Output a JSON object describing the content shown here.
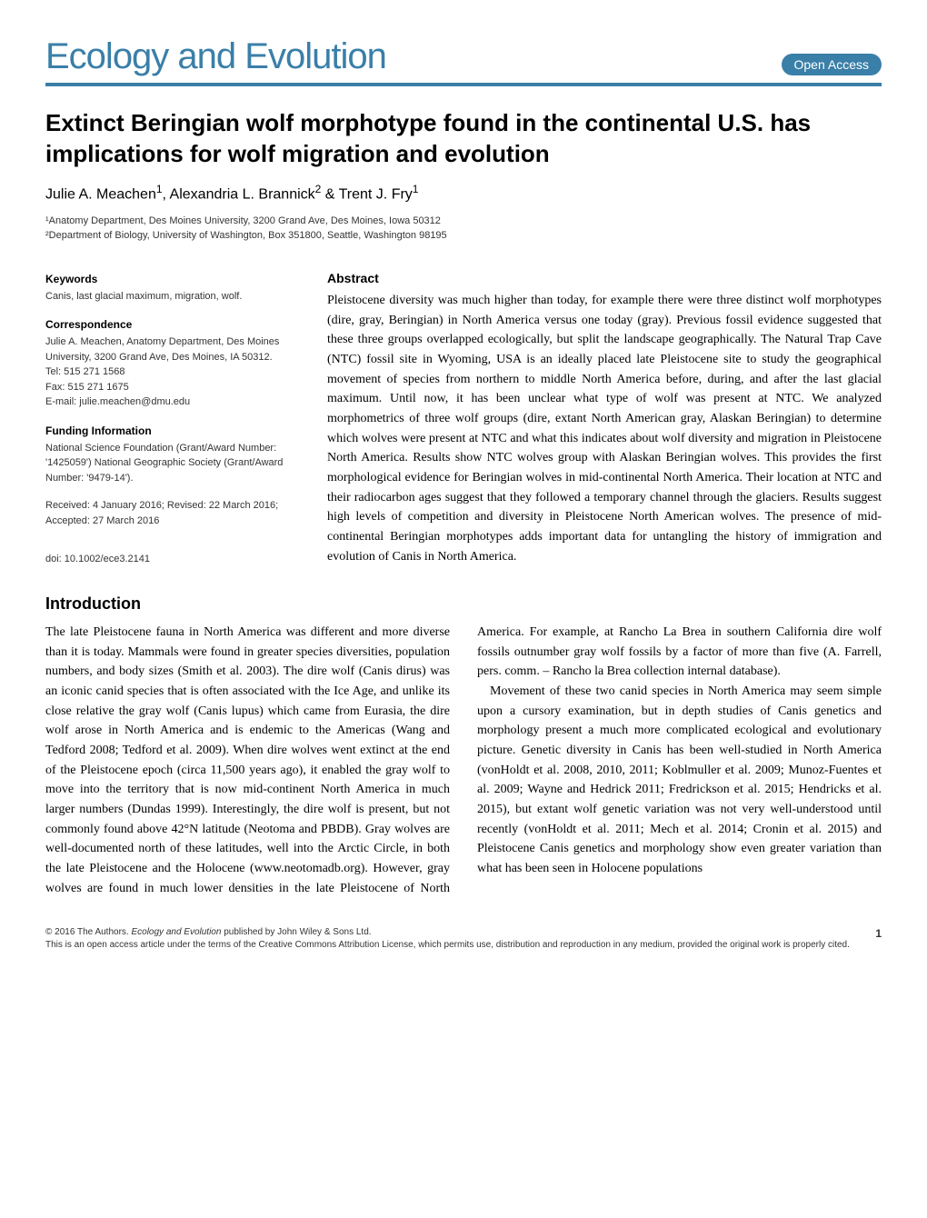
{
  "journal": {
    "name": "Ecology and Evolution",
    "open_access_label": "Open Access",
    "brand_color": "#3a7fa8"
  },
  "article": {
    "title": "Extinct Beringian wolf morphotype found in the continental U.S. has implications for wolf migration and evolution",
    "authors_html": "Julie A. Meachen<sup>1</sup>, Alexandria L. Brannick<sup>2</sup> & Trent J. Fry<sup>1</sup>",
    "affiliations": [
      "¹Anatomy Department, Des Moines University, 3200 Grand Ave, Des Moines, Iowa 50312",
      "²Department of Biology, University of Washington, Box 351800, Seattle, Washington 98195"
    ]
  },
  "sidebar": {
    "keywords_heading": "Keywords",
    "keywords": "Canis, last glacial maximum, migration, wolf.",
    "correspondence_heading": "Correspondence",
    "correspondence": "Julie A. Meachen, Anatomy Department, Des Moines University, 3200 Grand Ave, Des Moines, IA 50312.\nTel: 515 271 1568\nFax: 515 271 1675\nE-mail: julie.meachen@dmu.edu",
    "funding_heading": "Funding Information",
    "funding": "National Science Foundation (Grant/Award Number: '1425059') National Geographic Society (Grant/Award Number: '9479-14').",
    "dates": "Received: 4 January 2016; Revised: 22 March 2016; Accepted: 27 March 2016",
    "doi": "doi: 10.1002/ece3.2141"
  },
  "abstract": {
    "heading": "Abstract",
    "text": "Pleistocene diversity was much higher than today, for example there were three distinct wolf morphotypes (dire, gray, Beringian) in North America versus one today (gray). Previous fossil evidence suggested that these three groups overlapped ecologically, but split the landscape geographically. The Natural Trap Cave (NTC) fossil site in Wyoming, USA is an ideally placed late Pleistocene site to study the geographical movement of species from northern to middle North America before, during, and after the last glacial maximum. Until now, it has been unclear what type of wolf was present at NTC. We analyzed morphometrics of three wolf groups (dire, extant North American gray, Alaskan Beringian) to determine which wolves were present at NTC and what this indicates about wolf diversity and migration in Pleistocene North America. Results show NTC wolves group with Alaskan Beringian wolves. This provides the first morphological evidence for Beringian wolves in mid-continental North America. Their location at NTC and their radiocarbon ages suggest that they followed a temporary channel through the glaciers. Results suggest high levels of competition and diversity in Pleistocene North American wolves. The presence of mid-continental Beringian morphotypes adds important data for untangling the history of immigration and evolution of Canis in North America."
  },
  "introduction": {
    "heading": "Introduction",
    "paragraphs": [
      "The late Pleistocene fauna in North America was different and more diverse than it is today. Mammals were found in greater species diversities, population numbers, and body sizes (Smith et al. 2003). The dire wolf (Canis dirus) was an iconic canid species that is often associated with the Ice Age, and unlike its close relative the gray wolf (Canis lupus) which came from Eurasia, the dire wolf arose in North America and is endemic to the Americas (Wang and Tedford 2008; Tedford et al. 2009). When dire wolves went extinct at the end of the Pleistocene epoch (circa 11,500 years ago), it enabled the gray wolf to move into the territory that is now mid-continent North America in much larger numbers (Dundas 1999). Interestingly, the dire wolf is present, but not commonly found above 42°N latitude (Neotoma and PBDB). Gray wolves are well-documented north of these latitudes, well into the Arctic Circle, in both the late Pleistocene and the Holocene (www.neotomadb.org). However, gray wolves are found in much lower densities in the late Pleistocene of North America. For example, at Rancho La Brea in southern California dire wolf fossils outnumber gray wolf fossils by a factor of more than five (A. Farrell, pers. comm. – Rancho la Brea collection internal database).",
      "Movement of these two canid species in North America may seem simple upon a cursory examination, but in depth studies of Canis genetics and morphology present a much more complicated ecological and evolutionary picture. Genetic diversity in Canis has been well-studied in North America (vonHoldt et al. 2008, 2010, 2011; Koblmuller et al. 2009; Munoz-Fuentes et al. 2009; Wayne and Hedrick 2011; Fredrickson et al. 2015; Hendricks et al. 2015), but extant wolf genetic variation was not very well-understood until recently (vonHoldt et al. 2011; Mech et al. 2014; Cronin et al. 2015) and Pleistocene Canis genetics and morphology show even greater variation than what has been seen in Holocene populations"
    ]
  },
  "footer": {
    "copyright": "© 2016 The Authors. Ecology and Evolution published by John Wiley & Sons Ltd.",
    "license": "This is an open access article under the terms of the Creative Commons Attribution License, which permits use, distribution and reproduction in any medium, provided the original work is properly cited.",
    "page_number": "1"
  },
  "typography": {
    "title_fontsize": 26,
    "body_fontsize": 14,
    "sidebar_fontsize": 11,
    "journal_fontsize": 40
  }
}
